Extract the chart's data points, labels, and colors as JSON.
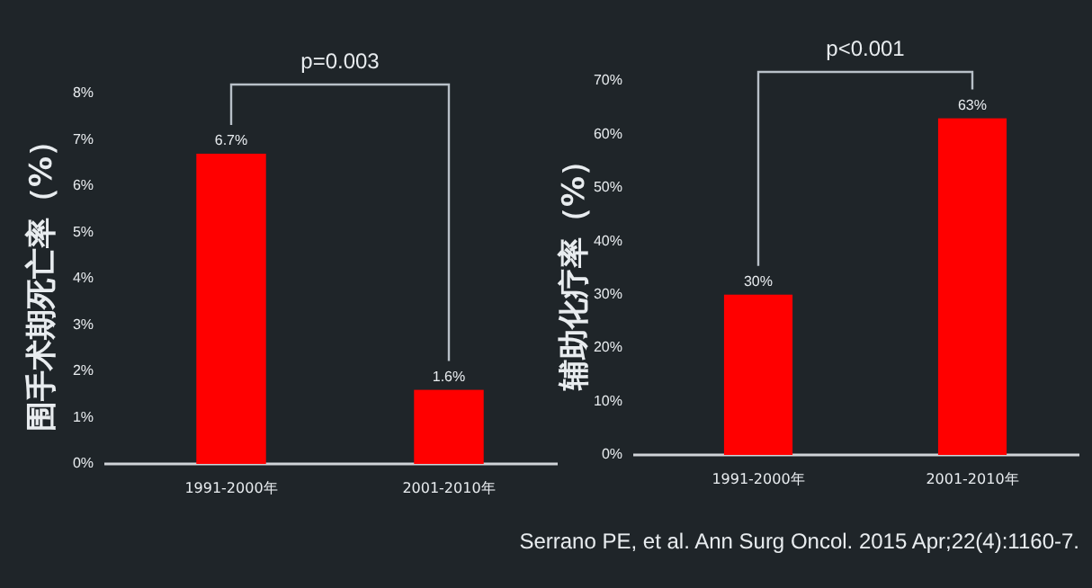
{
  "chart_data": [
    {
      "type": "bar",
      "ylabel": "围手术期死亡率（%）",
      "categories": [
        "1991-2000年",
        "2001-2010年"
      ],
      "values": [
        6.7,
        1.6
      ],
      "color": "#ff0000",
      "value_labels": [
        "6.7%",
        "1.6%"
      ],
      "ylim": [
        0,
        8
      ],
      "yticks": [
        {
          "value": 0,
          "label": "0%"
        },
        {
          "value": 1,
          "label": "1%"
        },
        {
          "value": 2,
          "label": "2%"
        },
        {
          "value": 3,
          "label": "3%"
        },
        {
          "value": 4,
          "label": "4%"
        },
        {
          "value": 5,
          "label": "5%"
        },
        {
          "value": 6,
          "label": "6%"
        },
        {
          "value": 7,
          "label": "7%"
        },
        {
          "value": 8,
          "label": "8%"
        }
      ],
      "annotations": [
        "p=0.003"
      ]
    },
    {
      "type": "bar",
      "ylabel": "辅助化疗率（%）",
      "categories": [
        "1991-2000年",
        "2001-2010年"
      ],
      "values": [
        30,
        63
      ],
      "color": "#ff0000",
      "value_labels": [
        "30%",
        "63%"
      ],
      "ylim": [
        0,
        70
      ],
      "yticks": [
        {
          "value": 0,
          "label": "0%"
        },
        {
          "value": 10,
          "label": "10%"
        },
        {
          "value": 20,
          "label": "20%"
        },
        {
          "value": 30,
          "label": "30%"
        },
        {
          "value": 40,
          "label": "40%"
        },
        {
          "value": 50,
          "label": "50%"
        },
        {
          "value": 60,
          "label": "60%"
        },
        {
          "value": 70,
          "label": "70%"
        }
      ],
      "annotations": [
        "p<0.001",
        "Serrano PE, et al. Ann Surg Oncol. 2015 Apr;22(4):1160-7."
      ]
    }
  ]
}
